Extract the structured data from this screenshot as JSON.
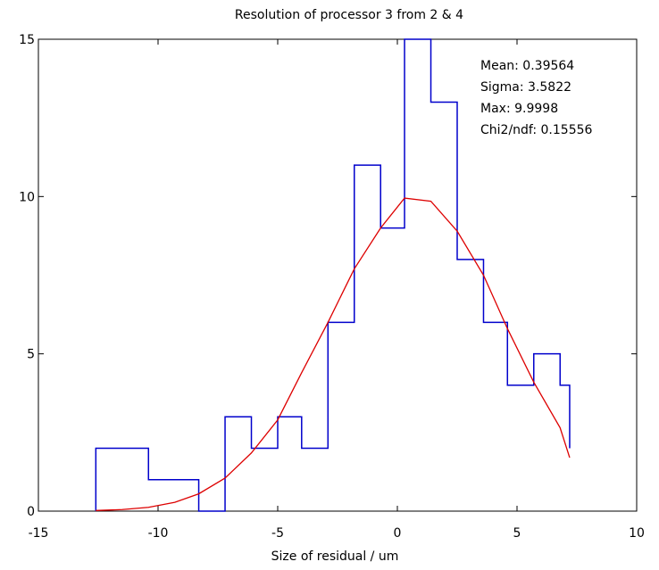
{
  "chart_data": {
    "type": "histogram",
    "title": "Resolution of processor 3 from 2 & 4",
    "xlabel": "Size of residual / um",
    "ylabel": "",
    "xlim": [
      -15,
      10
    ],
    "ylim": [
      0,
      15
    ],
    "xticks": [
      -15,
      -10,
      -5,
      0,
      5,
      10
    ],
    "yticks": [
      0,
      5,
      10,
      15
    ],
    "grid": false,
    "histogram": {
      "color": "#0000cc",
      "bin_edges": [
        -12.6,
        -11.5,
        -10.4,
        -9.3,
        -8.3,
        -7.2,
        -6.1,
        -5.0,
        -4.0,
        -2.9,
        -1.8,
        -0.7,
        0.3,
        1.4,
        2.5,
        3.6,
        4.6,
        5.7,
        6.8,
        7.2
      ],
      "counts": [
        2,
        2,
        1,
        1,
        0,
        3,
        2,
        3,
        2,
        6,
        11,
        9,
        15,
        13,
        8,
        6,
        4,
        5,
        4
      ]
    },
    "fit_curve": {
      "color": "#dd0000",
      "x": [
        -12.6,
        -11.5,
        -10.4,
        -9.3,
        -8.3,
        -7.2,
        -6.1,
        -5.0,
        -4.0,
        -2.9,
        -1.8,
        -0.7,
        0.3,
        1.4,
        2.5,
        3.6,
        4.6,
        5.7,
        6.8,
        7.2
      ],
      "y": [
        0.02,
        0.05,
        0.12,
        0.28,
        0.55,
        1.05,
        1.85,
        2.9,
        4.4,
        6.0,
        7.7,
        9.0,
        9.95,
        9.85,
        8.9,
        7.5,
        5.8,
        4.1,
        2.65,
        1.7
      ]
    },
    "stats": {
      "lines": [
        "Mean: 0.39564",
        "Sigma: 3.5822",
        "Max: 9.9998",
        "Chi2/ndf: 0.15556"
      ]
    }
  }
}
